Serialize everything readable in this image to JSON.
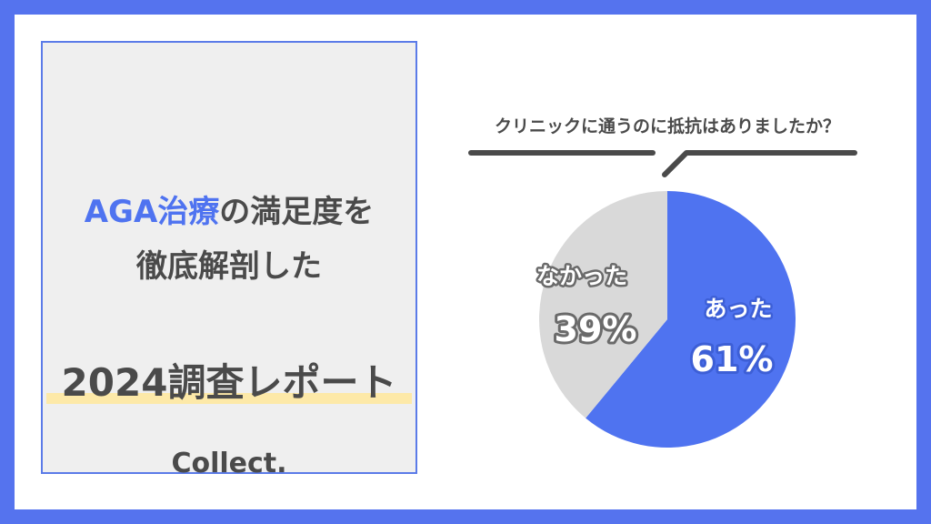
{
  "card": {
    "title_accent": "AGA治療",
    "title_rest": "の満足度を",
    "title_line2": "徹底解剖した",
    "report": "2024調査レポート",
    "brand": "Collect."
  },
  "colors": {
    "frame": "#5573ee",
    "accent": "#4f73f0",
    "gray_slice": "#d9d9d9",
    "highlight": "#fde9a8"
  },
  "chart_data": {
    "type": "pie",
    "title": "クリニックに通うのに抵抗はありましたか？",
    "categories": [
      "あった",
      "なかった"
    ],
    "values": [
      61,
      39
    ],
    "labels": [
      "61%",
      "39%"
    ],
    "colors": [
      "#4f73f0",
      "#d9d9d9"
    ],
    "start": "12 o'clock, clockwise"
  }
}
